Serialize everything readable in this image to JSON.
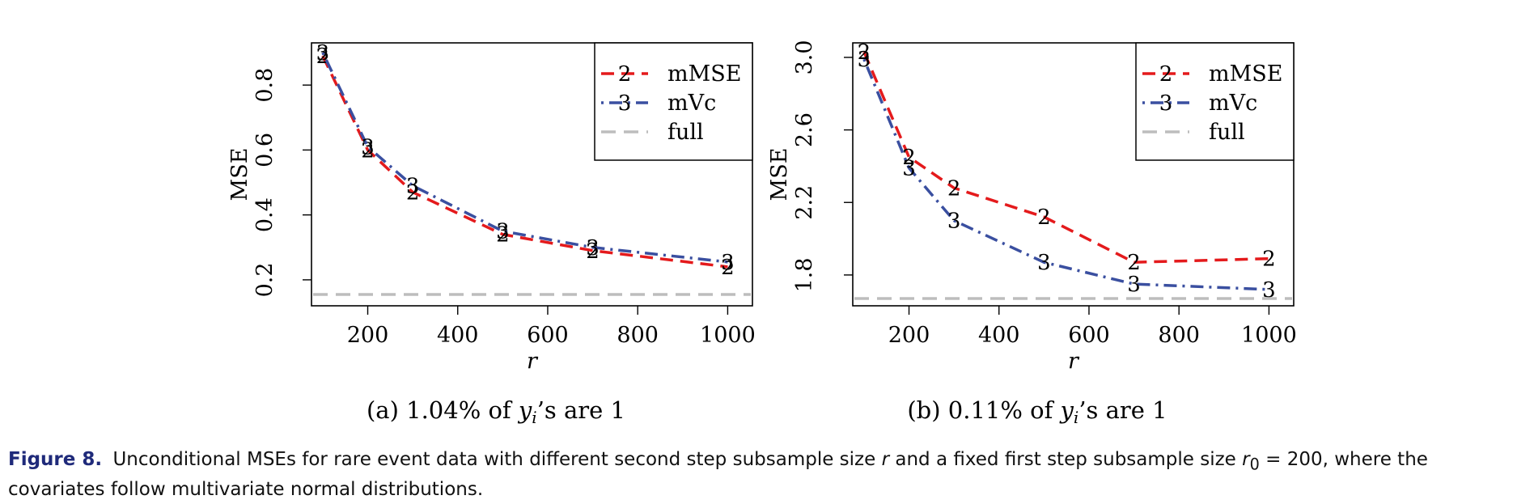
{
  "chart_data": [
    {
      "type": "line",
      "panel_label": "(a) 1.04% of y",
      "panel_label_sub": "i",
      "panel_label_rest": "’s are 1",
      "xlabel": "r",
      "ylabel": "MSE",
      "xlim": [
        75,
        1055
      ],
      "ylim": [
        0.12,
        0.93
      ],
      "x_ticks": [
        200,
        400,
        600,
        800,
        1000
      ],
      "y_ticks": [
        "0.2",
        "0.4",
        "0.6",
        "0.8"
      ],
      "grid": false,
      "legend_position": "top-right",
      "x": [
        100,
        200,
        300,
        500,
        700,
        1000
      ],
      "series": [
        {
          "name": "mMSE",
          "marker": "2",
          "color": "#e41a1c",
          "dash": "dashed",
          "values": [
            0.89,
            0.6,
            0.47,
            0.34,
            0.29,
            0.24
          ]
        },
        {
          "name": "mVc",
          "marker": "3",
          "color": "#3a4fa0",
          "dash": "dotdash",
          "values": [
            0.9,
            0.61,
            0.49,
            0.35,
            0.3,
            0.255
          ]
        },
        {
          "name": "full",
          "marker": "",
          "color": "#bdbdbd",
          "dash": "longdash",
          "values": [
            0.155,
            0.155,
            0.155,
            0.155,
            0.155,
            0.155
          ],
          "hline": 0.155
        }
      ]
    },
    {
      "type": "line",
      "panel_label": "(b) 0.11% of y",
      "panel_label_sub": "i",
      "panel_label_rest": "’s are 1",
      "xlabel": "r",
      "ylabel": "MSE",
      "xlim": [
        75,
        1055
      ],
      "ylim": [
        1.63,
        3.08
      ],
      "x_ticks": [
        200,
        400,
        600,
        800,
        1000
      ],
      "y_ticks": [
        "1.8",
        "2.2",
        "2.6",
        "3.0"
      ],
      "grid": false,
      "legend_position": "top-right",
      "x": [
        100,
        200,
        300,
        500,
        700,
        1000
      ],
      "series": [
        {
          "name": "mMSE",
          "marker": "2",
          "color": "#e41a1c",
          "dash": "dashed",
          "values": [
            3.03,
            2.45,
            2.28,
            2.12,
            1.87,
            1.89
          ]
        },
        {
          "name": "mVc",
          "marker": "3",
          "color": "#3a4fa0",
          "dash": "dotdash",
          "values": [
            2.99,
            2.39,
            2.1,
            1.87,
            1.75,
            1.72
          ]
        },
        {
          "name": "full",
          "marker": "",
          "color": "#bdbdbd",
          "dash": "longdash",
          "values": [
            1.67,
            1.67,
            1.67,
            1.67,
            1.67,
            1.67
          ],
          "hline": 1.67
        }
      ]
    }
  ],
  "caption": {
    "lead": "Figure 8.",
    "part1": "Unconditional MSEs for rare event data with different second step subsample size",
    "r_symbol": "r",
    "part2": "and a fixed first step subsample size",
    "r0_symbol": "r",
    "r0_sub": "0",
    "part3": "= 200, where the covariates follow multivariate normal distributions."
  }
}
